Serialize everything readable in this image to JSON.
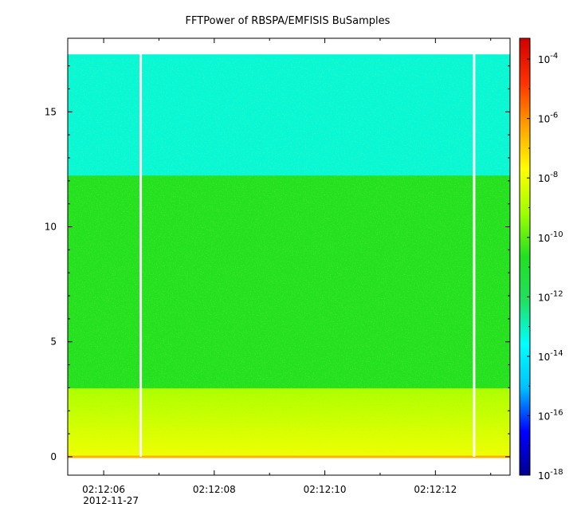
{
  "chart_data": {
    "type": "heatmap",
    "title": "FFTPower of RBSPA/EMFISIS  BuSamples",
    "xlabel": "",
    "ylabel": "",
    "x_ticks": [
      {
        "value": 6,
        "label": "02:12:06",
        "sublabel": "2012-11-27"
      },
      {
        "value": 8,
        "label": "02:12:08",
        "sublabel": ""
      },
      {
        "value": 10,
        "label": "02:12:10",
        "sublabel": ""
      },
      {
        "value": 12,
        "label": "02:12:12",
        "sublabel": ""
      }
    ],
    "xlim": [
      5.35,
      13.35
    ],
    "y_ticks": [
      0,
      5,
      10,
      15
    ],
    "ylim": [
      -0.8,
      18.2
    ],
    "data_extent": {
      "x": [
        5.35,
        13.35
      ],
      "y": [
        0,
        17.5
      ]
    },
    "log_scale_colorbar": true,
    "colorbar": {
      "range_exp": [
        -18,
        -3.3
      ],
      "tick_exponents": [
        -4,
        -6,
        -8,
        -10,
        -12,
        -14,
        -16,
        -18
      ],
      "tick_base": "10",
      "colors": [
        "#00008f",
        "#0000ff",
        "#00c0ff",
        "#00ffff",
        "#20e060",
        "#20e020",
        "#a0ff00",
        "#ffff00",
        "#ffa000",
        "#ff3000",
        "#d00000"
      ]
    },
    "data_gaps_x": [
      6.67,
      12.7
    ],
    "bands": [
      {
        "y_range": [
          12.3,
          17.5
        ],
        "level_exp": -13.2,
        "description": ""
      },
      {
        "y_range": [
          3.0,
          12.3
        ],
        "level_exp": -10.6
      },
      {
        "y_range": [
          0,
          3.0
        ],
        "level_exp": -9.0
      }
    ],
    "grid": false
  }
}
